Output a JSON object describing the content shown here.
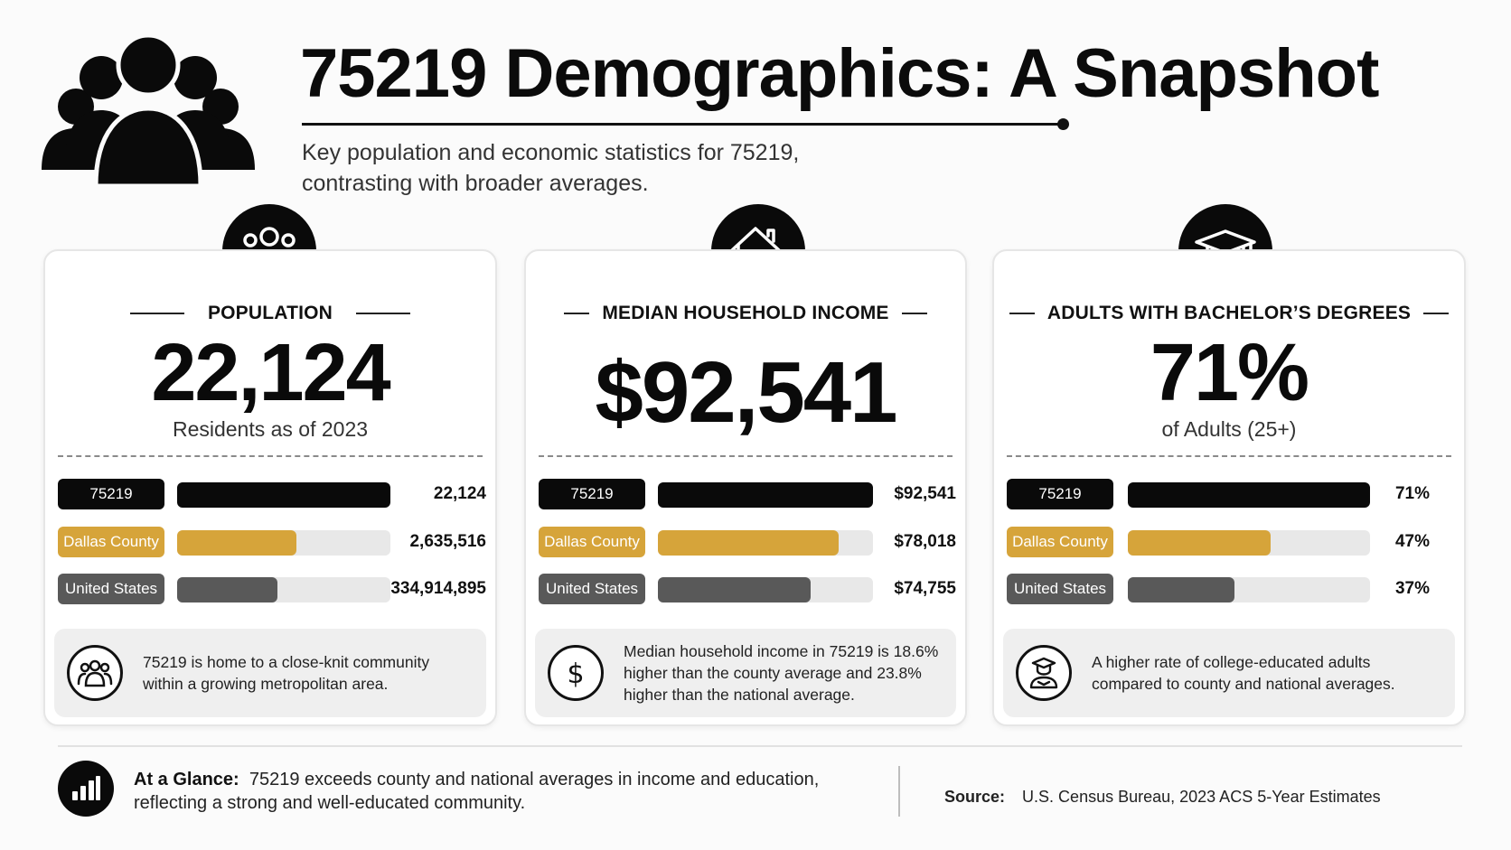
{
  "header": {
    "title": "75219 Demographics: A Snapshot",
    "subtitle_line1": "Key population and economic statistics for 75219,",
    "subtitle_line2": "contrasting with broader averages.",
    "hero_icon": "people-group-icon"
  },
  "colors": {
    "primary": "#0a0a0a",
    "county": "#d6a43a",
    "national": "#595959",
    "track": "#e8e8e8"
  },
  "cards": [
    {
      "icon": "people-group-icon",
      "label": "POPULATION",
      "value": "22,124",
      "caption": "Residents as of 2023",
      "rows": [
        {
          "name": "75219",
          "value": "22,124",
          "fill": 1.0
        },
        {
          "name": "Dallas County",
          "value": "2,635,516",
          "fill": 0.56
        },
        {
          "name": "United States",
          "value": "334,914,895",
          "fill": 0.47
        }
      ],
      "note_icon": "community-icon",
      "note": "75219 is home to a close-knit community within a growing metropolitan area."
    },
    {
      "icon": "house-dollar-icon",
      "label": "MEDIAN HOUSEHOLD INCOME",
      "value": "$92,541",
      "caption": "",
      "rows": [
        {
          "name": "75219",
          "value": "$92,541",
          "fill": 1.0
        },
        {
          "name": "Dallas County",
          "value": "$78,018",
          "fill": 0.84
        },
        {
          "name": "United States",
          "value": "$74,755",
          "fill": 0.71
        }
      ],
      "note_icon": "dollar-icon",
      "note": "Median household income in 75219 is 18.6% higher than the county average and 23.8% higher than the national average."
    },
    {
      "icon": "graduation-cap-icon",
      "label": "ADULTS WITH BACHELOR’S DEGREES",
      "value": "71%",
      "caption": "of Adults (25+)",
      "rows": [
        {
          "name": "75219",
          "value": "71%",
          "fill": 1.0
        },
        {
          "name": "Dallas County",
          "value": "47%",
          "fill": 0.59
        },
        {
          "name": "United States",
          "value": "37%",
          "fill": 0.44
        }
      ],
      "note_icon": "graduate-icon",
      "note": "A higher rate of college-educated adults compared to county and national averages."
    }
  ],
  "footer": {
    "glance_label": "At a Glance:",
    "glance_text": "75219 exceeds county and national averages in income and education, reflecting a strong and well-educated community.",
    "source_label": "Source:",
    "source_text": "U.S. Census Bureau, 2023 ACS 5-Year Estimates",
    "icon": "bar-chart-icon"
  }
}
